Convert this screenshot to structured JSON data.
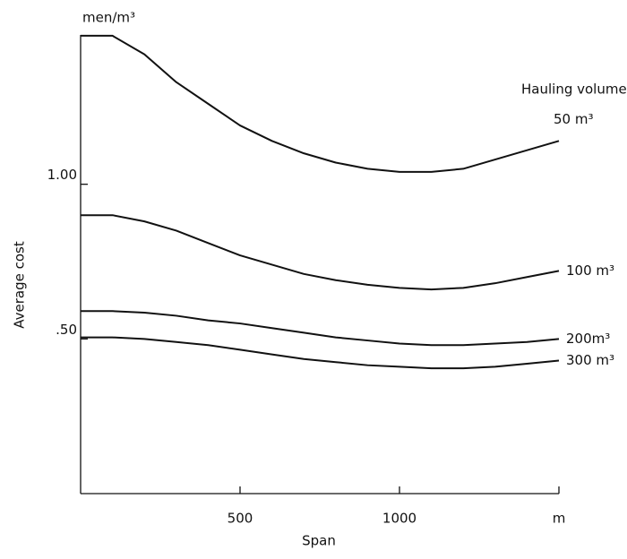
{
  "chart_data": {
    "type": "line",
    "y_unit": "men/m³",
    "ylabel": "Average cost",
    "xlabel": "Span",
    "legend_title": "Hauling volume,",
    "x": [
      0,
      100,
      200,
      300,
      400,
      500,
      600,
      700,
      800,
      900,
      1000,
      1100,
      1200,
      1300,
      1400,
      1500
    ],
    "xlim": [
      0,
      1500
    ],
    "xticks": [
      500,
      1000,
      {
        "value": 1500,
        "label": "m"
      }
    ],
    "ylim": [
      0,
      1.5
    ],
    "yticks": [
      {
        "value": 0.5,
        "label": ".50"
      },
      {
        "value": 1,
        "label": "1.00"
      }
    ],
    "series": [
      {
        "name": "50 m³",
        "color": "#111111",
        "values": [
          1.48,
          1.48,
          1.42,
          1.33,
          1.26,
          1.19,
          1.14,
          1.1,
          1.07,
          1.05,
          1.04,
          1.04,
          1.05,
          1.08,
          1.11,
          1.14
        ]
      },
      {
        "name": "100 m³",
        "color": "#111111",
        "values": [
          0.9,
          0.9,
          0.88,
          0.85,
          0.81,
          0.77,
          0.74,
          0.71,
          0.69,
          0.675,
          0.665,
          0.66,
          0.665,
          0.68,
          0.7,
          0.72
        ]
      },
      {
        "name": "200m³",
        "color": "#111111",
        "values": [
          0.59,
          0.59,
          0.585,
          0.575,
          0.56,
          0.55,
          0.535,
          0.52,
          0.505,
          0.495,
          0.485,
          0.48,
          0.48,
          0.485,
          0.49,
          0.5
        ]
      },
      {
        "name": "300 m³",
        "color": "#111111",
        "values": [
          0.505,
          0.505,
          0.5,
          0.49,
          0.48,
          0.465,
          0.45,
          0.435,
          0.425,
          0.415,
          0.41,
          0.405,
          0.405,
          0.41,
          0.42,
          0.43
        ]
      }
    ]
  }
}
